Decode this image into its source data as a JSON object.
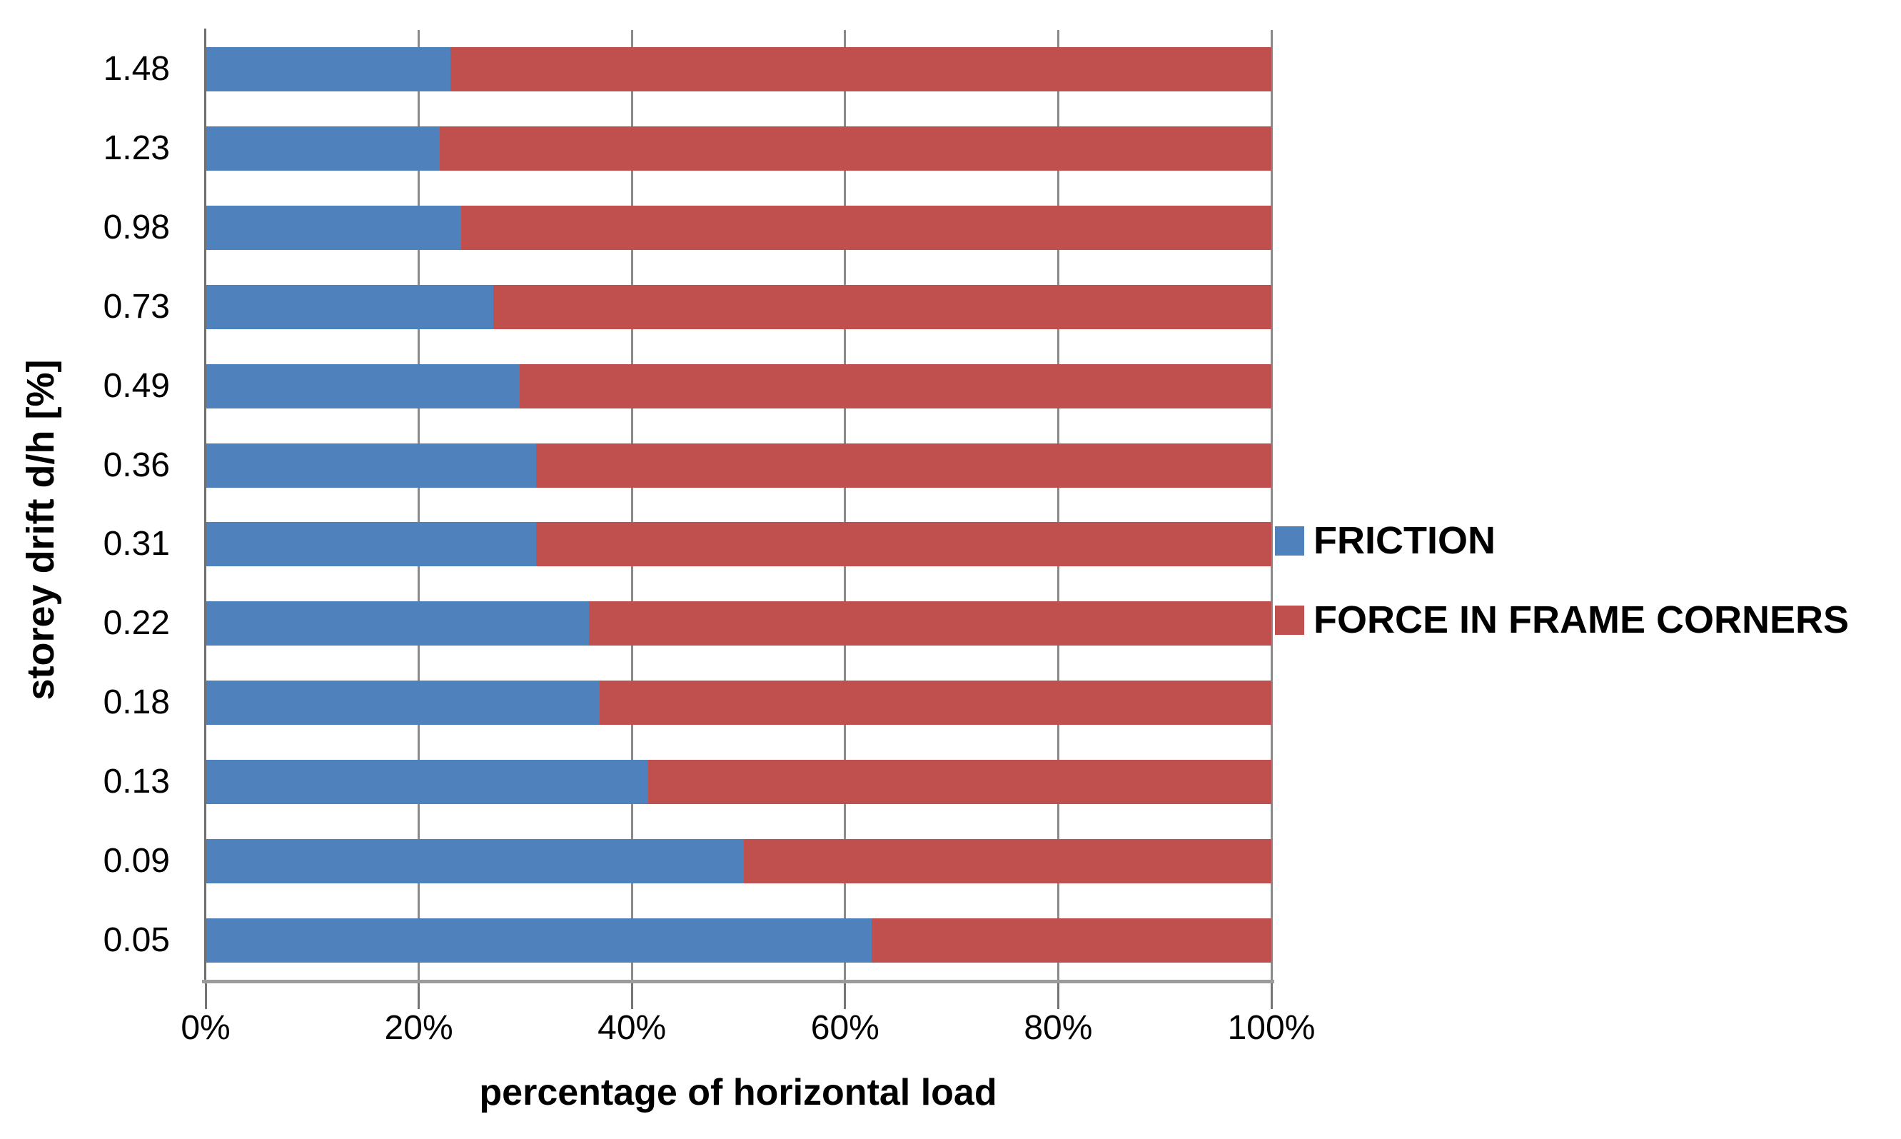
{
  "chart_data": {
    "type": "bar",
    "orientation": "horizontal",
    "stacked": true,
    "stacked_to_100_percent": true,
    "title": "",
    "xlabel": "percentage of horizontal load",
    "ylabel": "storey drift d/h [%]",
    "categories": [
      "1.48",
      "1.23",
      "0.98",
      "0.73",
      "0.49",
      "0.36",
      "0.31",
      "0.22",
      "0.18",
      "0.13",
      "0.09",
      "0.05"
    ],
    "series": [
      {
        "name": "FRICTION",
        "color": "#4F81BD",
        "values": [
          23,
          22,
          24,
          27,
          29.5,
          31,
          31,
          36,
          37,
          41.5,
          50.5,
          62.5
        ]
      },
      {
        "name": "FORCE IN FRAME CORNERS",
        "color": "#C0504D",
        "values": [
          77,
          78,
          76,
          73,
          70.5,
          69,
          69,
          64,
          63,
          58.5,
          49.5,
          37.5
        ]
      }
    ],
    "x_axis": {
      "tick_labels": [
        "0%",
        "20%",
        "40%",
        "60%",
        "80%",
        "100%"
      ],
      "tick_values": [
        0,
        20,
        40,
        60,
        80,
        100
      ],
      "range": [
        0,
        100
      ]
    },
    "grid": "vertical",
    "legend_position": "right"
  },
  "colors": {
    "friction": "#4F81BD",
    "frame_corners": "#C0504D",
    "gridline": "#8a8a8a",
    "axis_line": "#6f6f6f",
    "axis_base": "#9b9b9b",
    "text": "#000000",
    "background": "#FFFFFF"
  }
}
